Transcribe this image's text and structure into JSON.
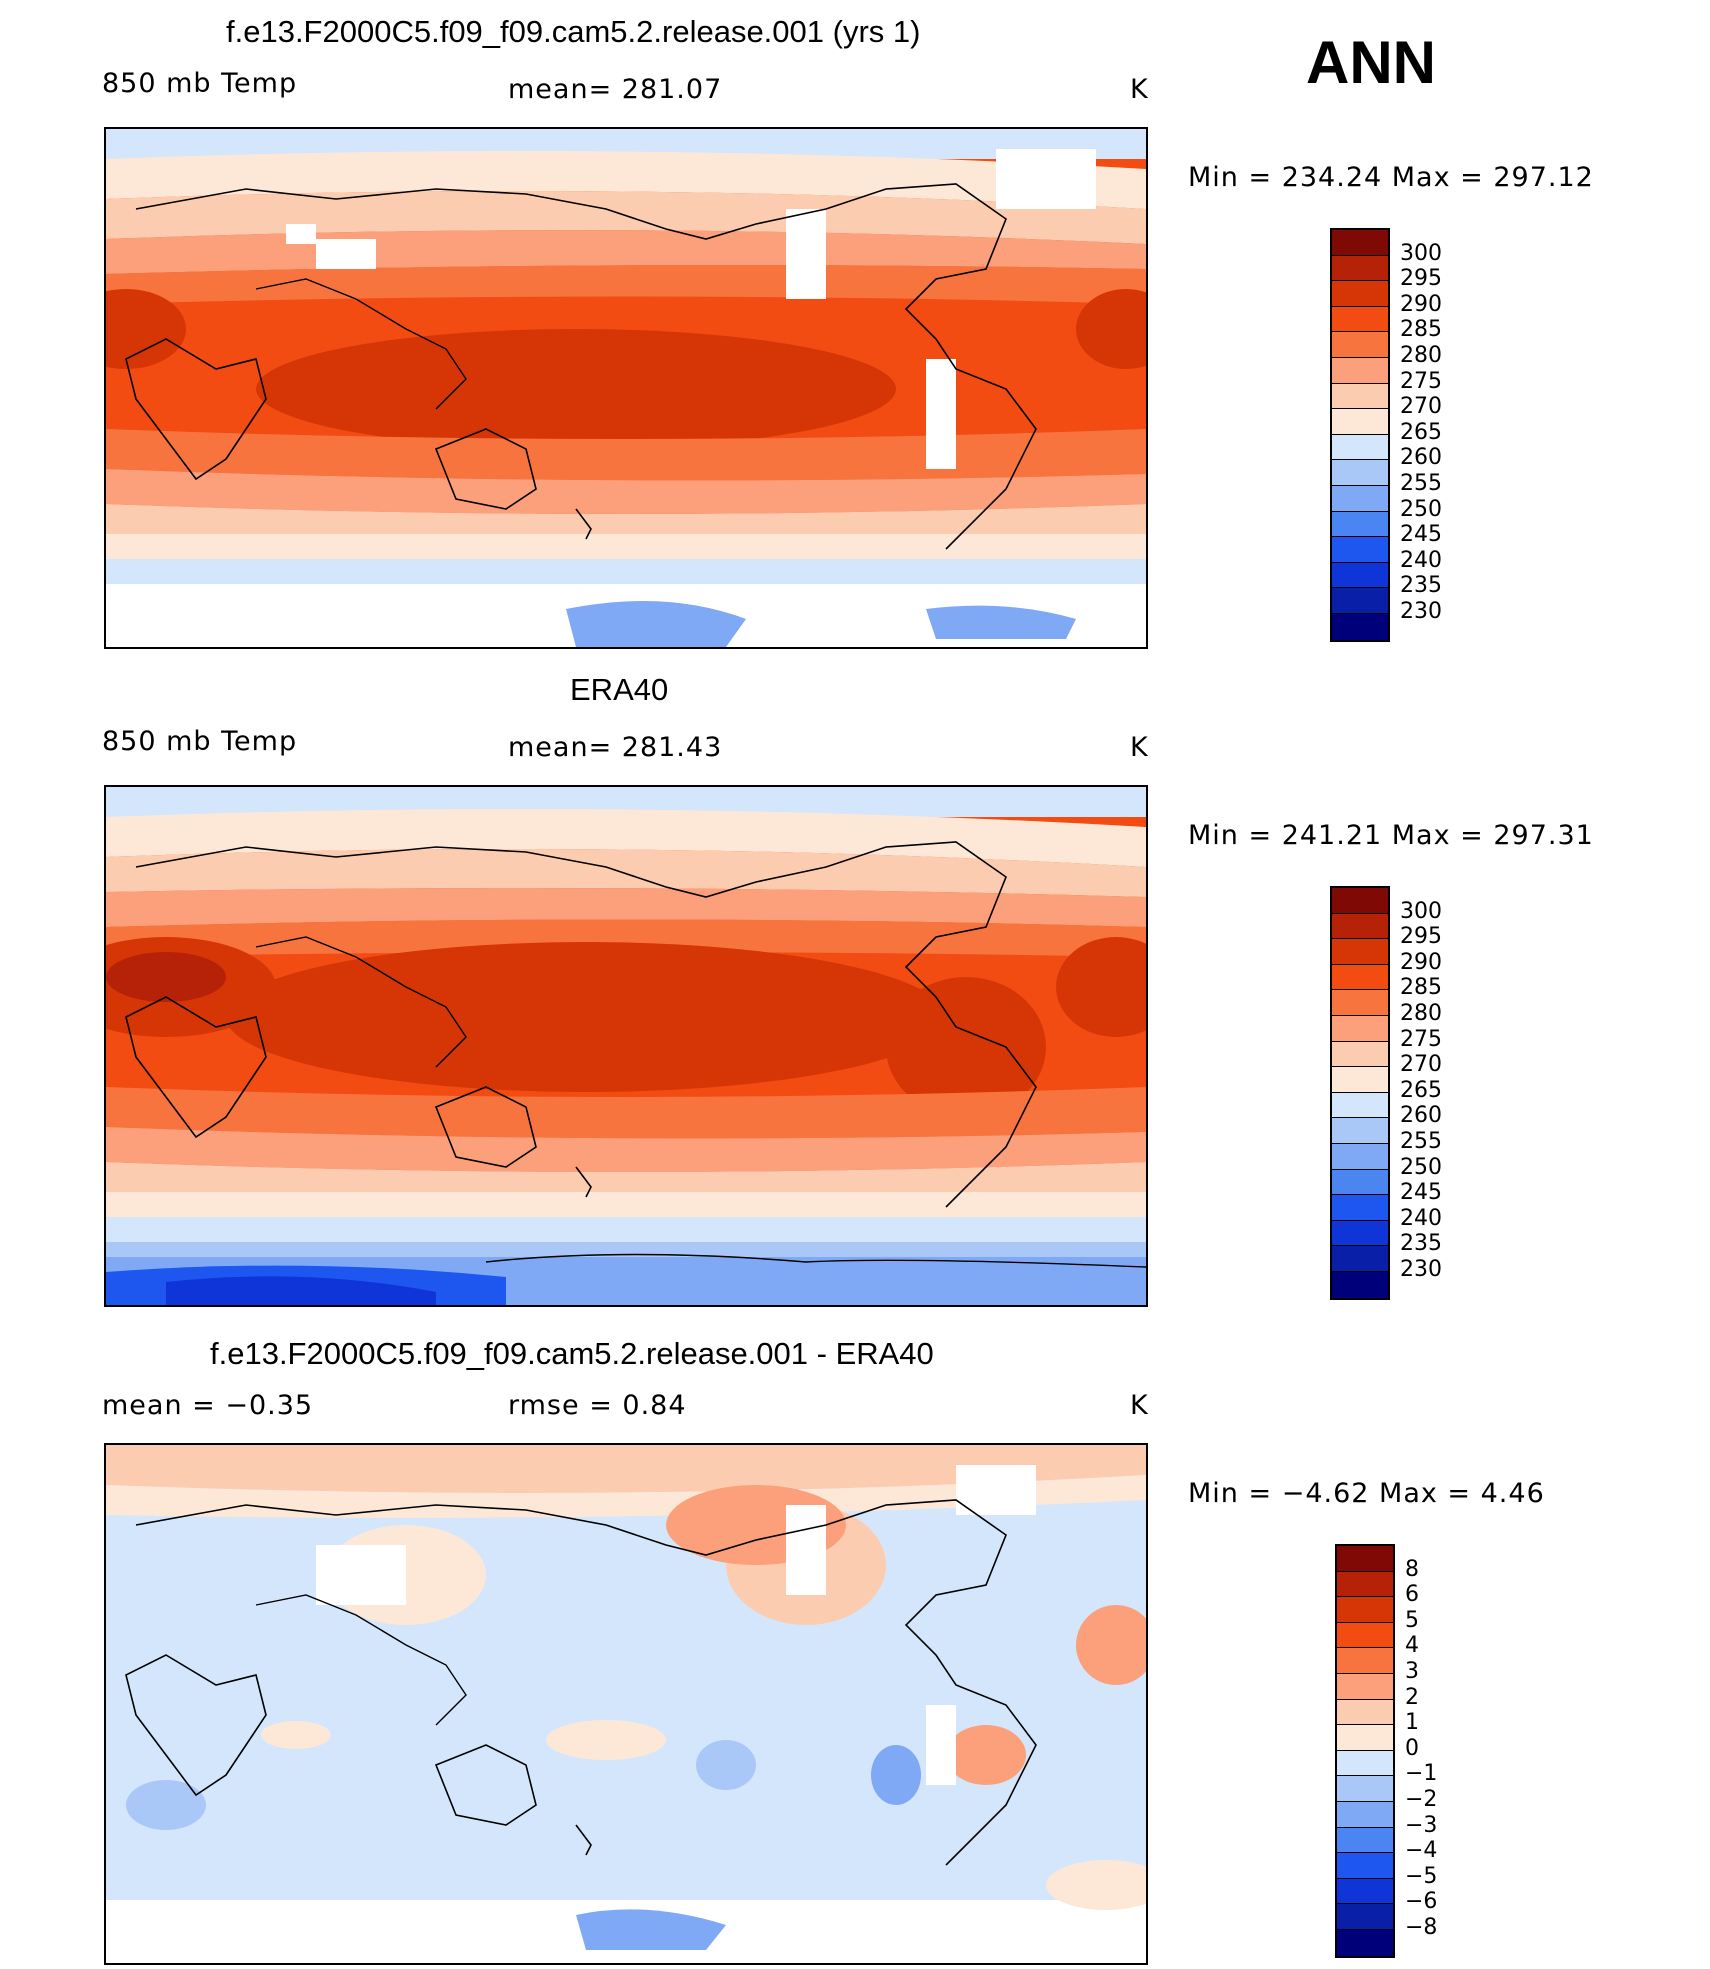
{
  "season": "ANN",
  "colors": {
    "abs": [
      "#00007a",
      "#0a1fa8",
      "#0f35d8",
      "#1e56f0",
      "#4a85f2",
      "#7fa9f5",
      "#a9c8f8",
      "#d4e6fb",
      "#fde8d8",
      "#fcccb0",
      "#fba07a",
      "#f8743f",
      "#f24c12",
      "#d63606",
      "#b52208",
      "#7f0a05"
    ],
    "diff": [
      "#00007a",
      "#0a1fa8",
      "#0f35d8",
      "#1e56f0",
      "#4a85f2",
      "#7fa9f5",
      "#a9c8f8",
      "#d4e6fb",
      "#fde8d8",
      "#fcccb0",
      "#fba07a",
      "#f8743f",
      "#f24c12",
      "#d63606",
      "#b52208",
      "#7f0a05"
    ]
  },
  "panels": [
    {
      "title": "f.e13.F2000C5.f09_f09.cam5.2.release.001 (yrs 1)",
      "left_label": "850 mb Temp",
      "center_label": "mean= 281.07",
      "units": "K",
      "minmax": "Min = 234.24 Max = 297.12",
      "ticks": [
        "300",
        "295",
        "290",
        "285",
        "280",
        "275",
        "270",
        "265",
        "260",
        "255",
        "250",
        "245",
        "240",
        "235",
        "230"
      ]
    },
    {
      "title": "ERA40",
      "left_label": "850 mb Temp",
      "center_label": "mean= 281.43",
      "units": "K",
      "minmax": "Min = 241.21 Max = 297.31",
      "ticks": [
        "300",
        "295",
        "290",
        "285",
        "280",
        "275",
        "270",
        "265",
        "260",
        "255",
        "250",
        "245",
        "240",
        "235",
        "230"
      ]
    },
    {
      "title": "f.e13.F2000C5.f09_f09.cam5.2.release.001 - ERA40",
      "left_label": "mean =   −0.35",
      "center_label": "rmse =    0.84",
      "units": "K",
      "minmax": "Min =  −4.62 Max =    4.46",
      "ticks": [
        "8",
        "6",
        "5",
        "4",
        "3",
        "2",
        "1",
        "0",
        "−1",
        "−2",
        "−3",
        "−4",
        "−5",
        "−6",
        "−8"
      ]
    }
  ]
}
